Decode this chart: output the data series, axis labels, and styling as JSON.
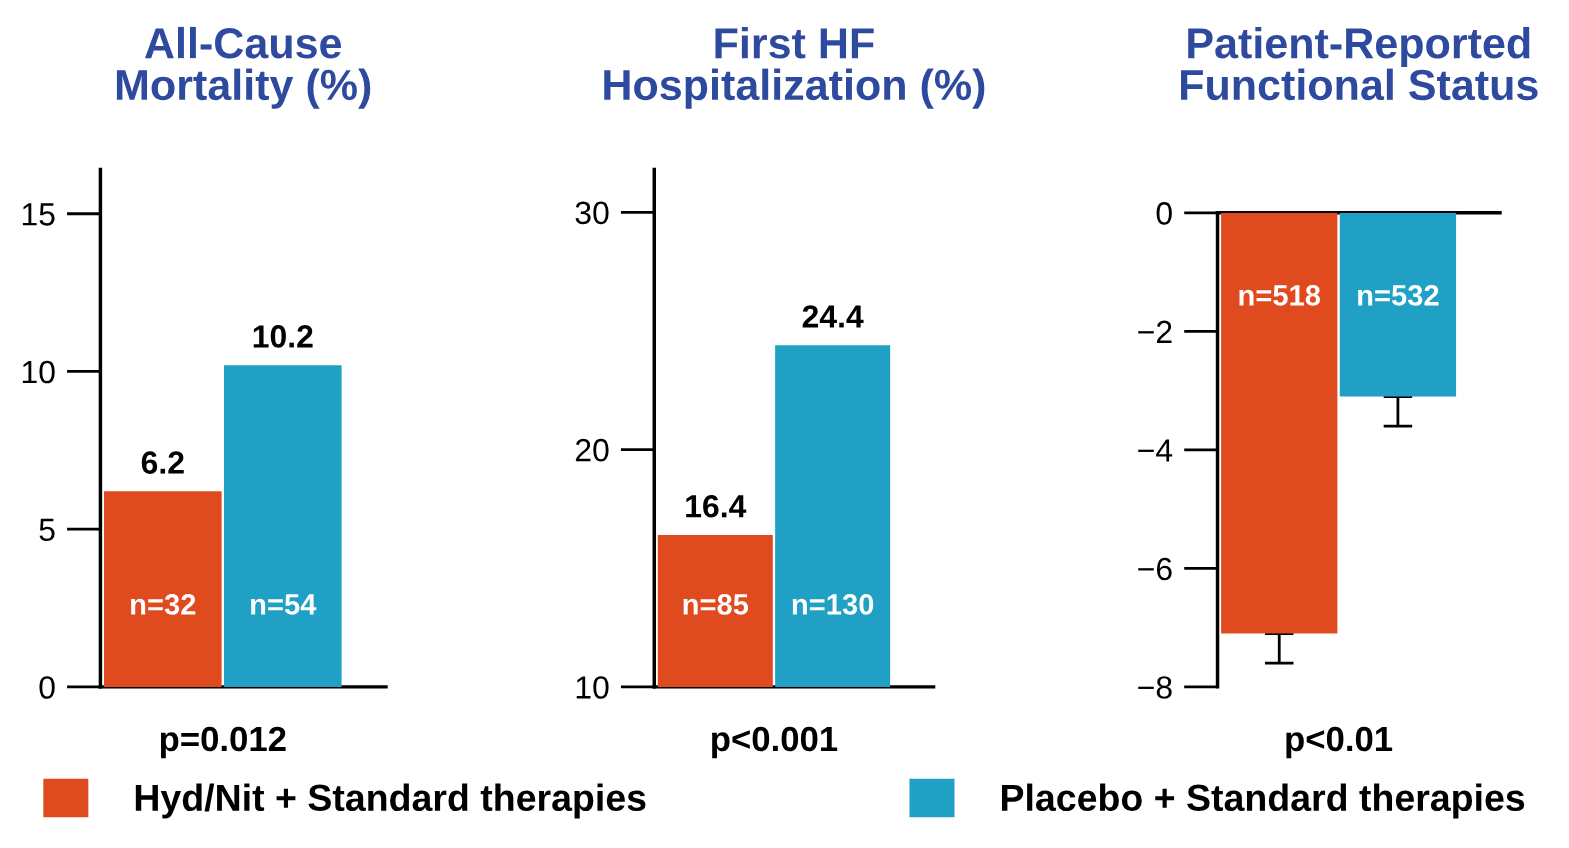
{
  "chart_data": [
    {
      "type": "bar",
      "title": "All-Cause\nMortality (%)",
      "categories": [
        null
      ],
      "series": [
        {
          "name": "Hyd/Nit + Standard therapies",
          "color": "#e04a1f",
          "values": [
            6.2
          ]
        },
        {
          "name": "Placebo + Standard therapies",
          "color": "#20a0c4",
          "values": [
            10.2
          ]
        }
      ],
      "ylim": [
        0,
        16.4
      ],
      "yticks": [
        0,
        5,
        10,
        15
      ],
      "data_labels": true,
      "legend": "bottom",
      "annotations": [
        "n=32",
        "n=54",
        "p=0.012"
      ]
    },
    {
      "type": "bar",
      "title": "First HF\nHospitalization (%)",
      "categories": [
        null
      ],
      "series": [
        {
          "color": "#e04a1f",
          "values": [
            16.4
          ]
        },
        {
          "color": "#20a0c4",
          "values": [
            24.4
          ]
        }
      ],
      "ylim": [
        10,
        31.8
      ],
      "yticks": [
        10,
        20,
        30
      ],
      "data_labels": true,
      "annotations": [
        "n=85",
        "n=130",
        "p<0.001"
      ]
    },
    {
      "type": "bar",
      "title": "Patient-Reported\nFunctional Status",
      "categories": [
        null
      ],
      "series": [
        {
          "color": "#e04a1f",
          "values": [
            -7.1
          ],
          "errors": [
            [
              -7.6,
              -7.1
            ]
          ]
        },
        {
          "color": "#20a0c4",
          "values": [
            -3.1
          ],
          "errors": [
            [
              -3.6,
              -3.1
            ]
          ]
        }
      ],
      "ylim": [
        -8,
        0
      ],
      "yticks": [
        {
          "value": -8,
          "label": "−8"
        },
        {
          "value": -6,
          "label": "−6"
        },
        {
          "value": -4,
          "label": "−4"
        },
        {
          "value": -2,
          "label": "−2"
        },
        0
      ],
      "annotations": [
        "n=518",
        "n=532",
        "p<0.01"
      ]
    }
  ]
}
